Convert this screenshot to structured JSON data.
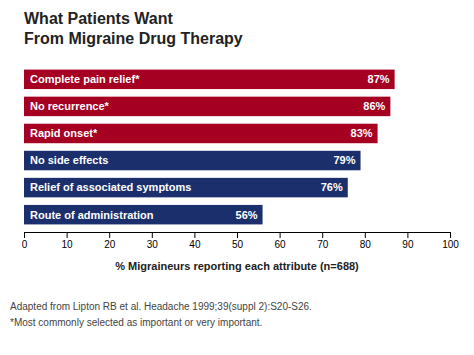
{
  "chart_data": {
    "type": "bar",
    "orientation": "horizontal",
    "title": "What Patients Want",
    "subtitle": "From Migraine Drug Therapy",
    "categories": [
      "Complete pain relief*",
      "No recurrence*",
      "Rapid onset*",
      "No side effects",
      "Relief of associated symptoms",
      "Route of administration"
    ],
    "values": [
      87,
      86,
      83,
      79,
      76,
      56
    ],
    "value_labels": [
      "87%",
      "86%",
      "83%",
      "79%",
      "76%",
      "56%"
    ],
    "data_labels": true,
    "colors": [
      "#A50021",
      "#A50021",
      "#A50021",
      "#1A2F6B",
      "#1A2F6B",
      "#1A2F6B"
    ],
    "x_label": "% Migraineurs reporting each attribute (n=688)",
    "xlim": [
      0,
      100
    ],
    "xticks": [
      0,
      10,
      20,
      30,
      40,
      50,
      60,
      70,
      80,
      90,
      100
    ],
    "grid": false,
    "annotations": [
      "Adapted from Lipton RB et al. Headache 1999;39(suppl 2):S20-S26.",
      "*Most commonly selected as important or very important."
    ]
  }
}
